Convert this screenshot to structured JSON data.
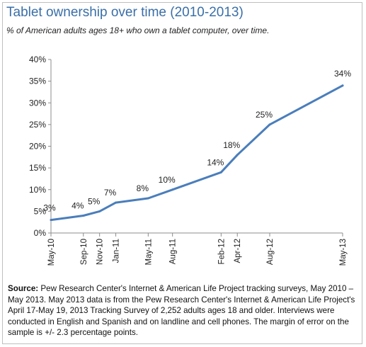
{
  "chart_data": {
    "type": "line",
    "title": "Tablet ownership over time (2010-2013)",
    "subtitle": "% of American adults ages 18+ who own a tablet computer, over time.",
    "x": [
      "May-10",
      "Sep-10",
      "Nov-10",
      "Jan-11",
      "May-11",
      "Aug-11",
      "Feb-12",
      "Apr-12",
      "Aug-12",
      "May-13"
    ],
    "x_months": [
      0,
      4,
      6,
      8,
      12,
      15,
      21,
      23,
      27,
      36
    ],
    "values": [
      3,
      4,
      5,
      7,
      8,
      10,
      14,
      18,
      25,
      34
    ],
    "data_labels": [
      "3%",
      "4%",
      "5%",
      "7%",
      "8%",
      "10%",
      "14%",
      "18%",
      "25%",
      "34%"
    ],
    "y_ticks": [
      "0%",
      "5%",
      "10%",
      "15%",
      "20%",
      "25%",
      "30%",
      "35%",
      "40%"
    ],
    "ylim": [
      0,
      40
    ],
    "grid": false,
    "line_color": "#4a7ebb"
  },
  "source": {
    "label": "Source:",
    "text": " Pew Research Center's Internet & American Life Project tracking surveys, May 2010 – May 2013. May 2013 data is from the Pew Research Center's Internet & American Life Project's April 17-May 19, 2013 Tracking Survey of 2,252 adults ages 18 and older. Interviews were conducted in English and Spanish and on landline and cell phones. The margin of error on the sample is +/- 2.3 percentage points."
  }
}
